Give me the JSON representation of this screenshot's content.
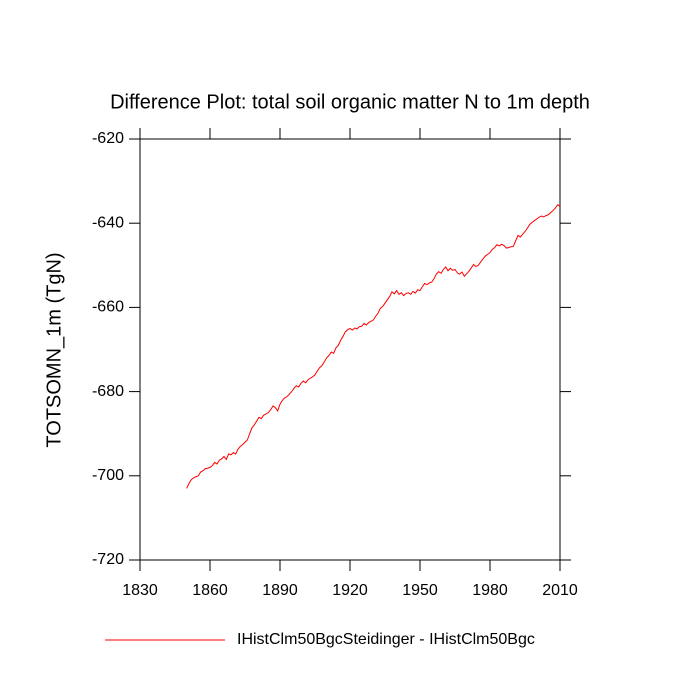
{
  "chart_data": {
    "type": "line",
    "title": "Difference Plot: total soil organic matter N to 1m depth",
    "y_label": "TOTSOMN_1m  (TgN)",
    "x": [
      1850,
      1851,
      1852,
      1853,
      1854,
      1855,
      1856,
      1857,
      1858,
      1859,
      1860,
      1861,
      1862,
      1863,
      1864,
      1865,
      1866,
      1867,
      1868,
      1869,
      1870,
      1871,
      1872,
      1873,
      1874,
      1875,
      1876,
      1877,
      1878,
      1879,
      1880,
      1881,
      1882,
      1883,
      1884,
      1885,
      1886,
      1887,
      1888,
      1889,
      1890,
      1891,
      1892,
      1893,
      1894,
      1895,
      1896,
      1897,
      1898,
      1899,
      1900,
      1901,
      1902,
      1903,
      1904,
      1905,
      1906,
      1907,
      1908,
      1909,
      1910,
      1911,
      1912,
      1913,
      1914,
      1915,
      1916,
      1917,
      1918,
      1919,
      1920,
      1921,
      1922,
      1923,
      1924,
      1925,
      1926,
      1927,
      1928,
      1929,
      1930,
      1931,
      1932,
      1933,
      1934,
      1935,
      1936,
      1937,
      1938,
      1939,
      1940,
      1941,
      1942,
      1943,
      1944,
      1945,
      1946,
      1947,
      1948,
      1949,
      1950,
      1951,
      1952,
      1953,
      1954,
      1955,
      1956,
      1957,
      1958,
      1959,
      1960,
      1961,
      1962,
      1963,
      1964,
      1965,
      1966,
      1967,
      1968,
      1969,
      1970,
      1971,
      1972,
      1973,
      1974,
      1975,
      1976,
      1977,
      1978,
      1979,
      1980,
      1981,
      1982,
      1983,
      1984,
      1985,
      1986,
      1987,
      1988,
      1989,
      1990,
      1991,
      1992,
      1993,
      1994,
      1995,
      1996,
      1997,
      1998,
      1999,
      2000,
      2001,
      2002,
      2003,
      2004,
      2005,
      2006,
      2007,
      2008,
      2009,
      2010
    ],
    "series": [
      {
        "name": "IHistClm50BgcSteidinger - IHistClm50Bgc",
        "color": "#ff0000",
        "values": [
          -703,
          -701.8,
          -700.9,
          -700.5,
          -700.2,
          -700,
          -699.1,
          -698.8,
          -698.3,
          -698.2,
          -698,
          -697.6,
          -696.8,
          -697.2,
          -696.3,
          -696,
          -695.4,
          -696.1,
          -694.8,
          -695,
          -694.5,
          -694.8,
          -693.7,
          -693,
          -692.6,
          -692,
          -691.5,
          -690,
          -688.6,
          -687.9,
          -687,
          -686.1,
          -686.4,
          -685.6,
          -685.3,
          -685,
          -684.3,
          -683.4,
          -683.8,
          -684.6,
          -683,
          -682.1,
          -681.5,
          -681.2,
          -680.6,
          -680,
          -679.2,
          -678.6,
          -678.9,
          -678,
          -677.5,
          -677.9,
          -677.2,
          -676.8,
          -676.5,
          -676,
          -675.1,
          -674.3,
          -673.8,
          -672.9,
          -672,
          -671.4,
          -670.6,
          -670.9,
          -669.6,
          -669,
          -667.8,
          -666.9,
          -665.8,
          -665.3,
          -665,
          -665.4,
          -664.9,
          -665.1,
          -664.6,
          -664.5,
          -663.8,
          -664.2,
          -663.6,
          -663.3,
          -663,
          -662.1,
          -661.4,
          -660.2,
          -659.8,
          -659,
          -658.2,
          -657.4,
          -656.3,
          -656.8,
          -656,
          -656.9,
          -656.5,
          -657.2,
          -656.7,
          -656.5,
          -656.9,
          -656.2,
          -656.6,
          -655.8,
          -656,
          -655.1,
          -654.3,
          -654.6,
          -654.2,
          -654,
          -653.2,
          -652.1,
          -651.5,
          -651.9,
          -651,
          -650.4,
          -651.3,
          -650.7,
          -651.2,
          -651,
          -651.8,
          -652.1,
          -651.6,
          -652.6,
          -652,
          -651.4,
          -650.6,
          -649.8,
          -650.3,
          -650,
          -649.2,
          -648.5,
          -647.8,
          -647.4,
          -647,
          -646.2,
          -645.8,
          -645.1,
          -645.4,
          -645,
          -645.3,
          -645.9,
          -645.8,
          -645.6,
          -645.5,
          -644.2,
          -642.9,
          -643.3,
          -642.6,
          -642,
          -641.2,
          -640.3,
          -639.8,
          -639.4,
          -639,
          -638.6,
          -638.3,
          -638.5,
          -638.2,
          -638,
          -637.5,
          -637,
          -636.4,
          -635.6,
          -636
        ]
      }
    ],
    "xlim": [
      1830,
      2010
    ],
    "xticks": [
      1830,
      1860,
      1890,
      1920,
      1950,
      1980,
      2010
    ],
    "ylim": [
      -720,
      -620
    ],
    "yticks": [
      -620,
      -640,
      -660,
      -680,
      -700,
      -720
    ]
  }
}
